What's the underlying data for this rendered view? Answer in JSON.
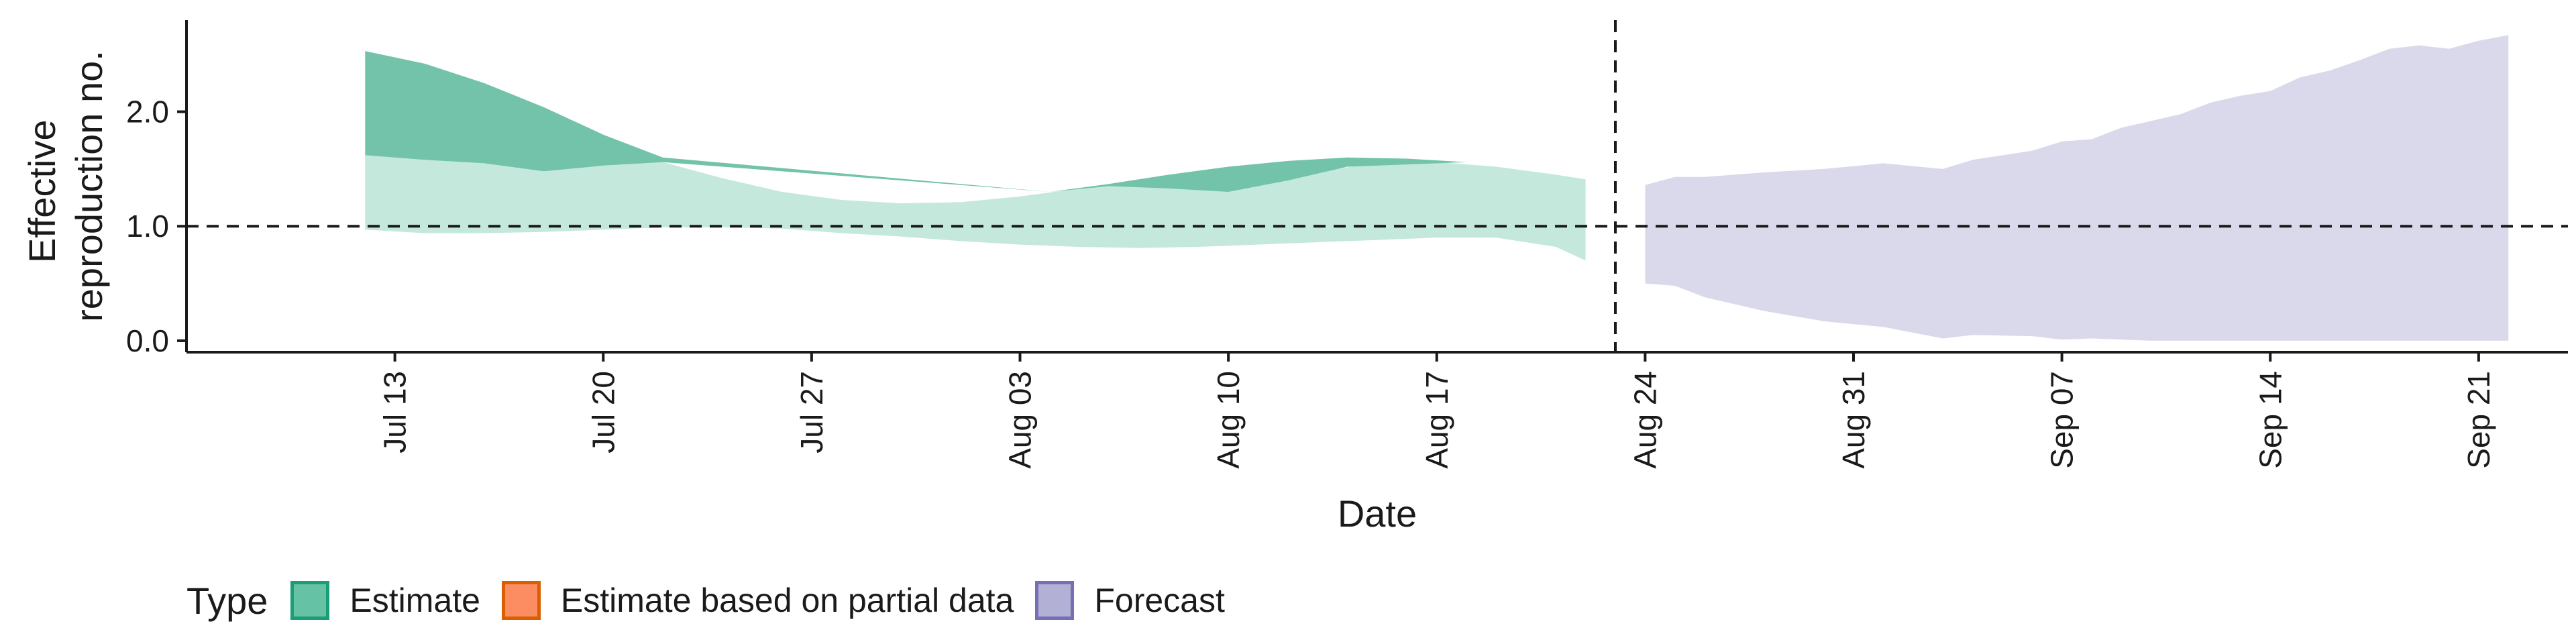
{
  "chart_data": {
    "type": "area",
    "xlabel": "Date",
    "ylabel_lines": [
      "Effective",
      "reproduction no."
    ],
    "ylim": [
      -0.1,
      2.8
    ],
    "xlim": [
      "2020-07-06",
      "2020-09-24"
    ],
    "y_ticks": [
      0.0,
      1.0,
      2.0
    ],
    "y_tick_labels": [
      "0.0",
      "1.0",
      "2.0"
    ],
    "x_ticks": [
      "2020-07-13",
      "2020-07-20",
      "2020-07-27",
      "2020-08-03",
      "2020-08-10",
      "2020-08-17",
      "2020-08-24",
      "2020-08-31",
      "2020-09-07",
      "2020-09-14",
      "2020-09-21"
    ],
    "x_tick_labels": [
      "Jul 13",
      "Jul 20",
      "Jul 27",
      "Aug 03",
      "Aug 10",
      "Aug 17",
      "Aug 24",
      "Aug 31",
      "Sep 07",
      "Sep 14",
      "Sep 21"
    ],
    "reference_line_y": 1.0,
    "forecast_start": "2020-08-23",
    "grid": false,
    "legend": {
      "title": "Type",
      "position": "bottom",
      "items": [
        {
          "label": "Estimate",
          "fill": "#66c2a5",
          "border": "#1b9e77"
        },
        {
          "label": "Estimate based on partial data",
          "fill": "#fc8d62",
          "border": "#d95f02"
        },
        {
          "label": "Forecast",
          "fill": "#b3b0d6",
          "border": "#7570b3"
        }
      ]
    },
    "series": [
      {
        "type": "Estimate",
        "band": "outer",
        "color": "#c5e8dc",
        "x": [
          "2020-07-12",
          "2020-07-14",
          "2020-07-16",
          "2020-07-18",
          "2020-07-20",
          "2020-07-22",
          "2020-07-24",
          "2020-07-26",
          "2020-07-28",
          "2020-07-30",
          "2020-08-01",
          "2020-08-03",
          "2020-08-05",
          "2020-08-07",
          "2020-08-09",
          "2020-08-11",
          "2020-08-13",
          "2020-08-15",
          "2020-08-17",
          "2020-08-19",
          "2020-08-21",
          "2020-08-22"
        ],
        "upper": [
          1.62,
          1.58,
          1.55,
          1.52,
          1.53,
          1.56,
          1.42,
          1.3,
          1.23,
          1.2,
          1.21,
          1.26,
          1.33,
          1.37,
          1.35,
          1.38,
          1.47,
          1.56,
          1.56,
          1.52,
          1.45,
          1.41
        ],
        "lower": [
          0.97,
          0.94,
          0.94,
          0.95,
          0.97,
          0.99,
          0.99,
          0.98,
          0.94,
          0.91,
          0.87,
          0.84,
          0.82,
          0.81,
          0.82,
          0.84,
          0.86,
          0.88,
          0.9,
          0.9,
          0.82,
          0.7
        ]
      },
      {
        "type": "Estimate",
        "band": "inner",
        "color": "#72c3aa",
        "x": [
          "2020-07-12",
          "2020-07-14",
          "2020-07-16",
          "2020-07-18",
          "2020-07-20",
          "2020-07-22",
          "2020-08-04",
          "2020-08-06",
          "2020-08-08",
          "2020-08-10",
          "2020-08-12",
          "2020-08-14",
          "2020-08-16",
          "2020-08-18"
        ],
        "upper": [
          2.53,
          2.42,
          2.25,
          2.04,
          1.8,
          1.6,
          1.3,
          1.37,
          1.45,
          1.52,
          1.57,
          1.6,
          1.59,
          1.56
        ],
        "lower": [
          1.62,
          1.58,
          1.55,
          1.48,
          1.53,
          1.56,
          1.3,
          1.35,
          1.33,
          1.3,
          1.4,
          1.52,
          1.54,
          1.56
        ]
      },
      {
        "type": "Forecast",
        "band": "outer",
        "color": "#dad9eb",
        "x": [
          "2020-08-24",
          "2020-08-25",
          "2020-08-26",
          "2020-08-28",
          "2020-08-30",
          "2020-09-01",
          "2020-09-03",
          "2020-09-04",
          "2020-09-06",
          "2020-09-07",
          "2020-09-08",
          "2020-09-09",
          "2020-09-10",
          "2020-09-11",
          "2020-09-12",
          "2020-09-13",
          "2020-09-14",
          "2020-09-15",
          "2020-09-16",
          "2020-09-17",
          "2020-09-18",
          "2020-09-19",
          "2020-09-20",
          "2020-09-21",
          "2020-09-22"
        ],
        "upper": [
          1.36,
          1.43,
          1.43,
          1.47,
          1.5,
          1.55,
          1.5,
          1.58,
          1.66,
          1.74,
          1.76,
          1.86,
          1.92,
          1.98,
          2.08,
          2.14,
          2.18,
          2.3,
          2.36,
          2.45,
          2.55,
          2.58,
          2.55,
          2.62,
          2.67
        ],
        "lower": [
          0.5,
          0.48,
          0.38,
          0.26,
          0.17,
          0.12,
          0.02,
          0.05,
          0.04,
          0.01,
          0.02,
          0.01,
          0.0,
          0.0,
          0.0,
          0.0,
          0.0,
          0.0,
          0.0,
          0.0,
          0.0,
          0.0,
          0.0,
          0.0,
          0.0
        ]
      }
    ]
  }
}
